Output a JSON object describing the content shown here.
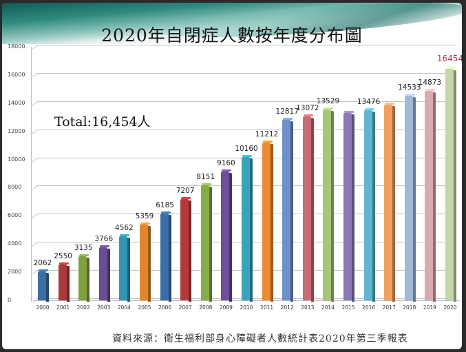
{
  "title": "2020年自閉症人數按年度分布圖",
  "total_annotation": "Total:16,454人",
  "source_note": "資料來源：衛生福利部身心障礙者人數統計表2020年第三季報表",
  "yticks": [
    "18000",
    "16000",
    "14000",
    "12000",
    "10000",
    "8000",
    "6000",
    "4000",
    "2000",
    "0"
  ],
  "highlight_color": "#c0304a",
  "chart_data": {
    "type": "bar",
    "title": "2020年自閉症人數按年度分布圖",
    "xlabel": "",
    "ylabel": "",
    "ylim": [
      0,
      18000
    ],
    "grid": true,
    "legend": "none",
    "categories": [
      "2000",
      "2001",
      "2002",
      "2003",
      "2004",
      "2005",
      "2006",
      "2007",
      "2008",
      "2009",
      "2010",
      "2011",
      "2012",
      "2013",
      "2014",
      "2015",
      "2016",
      "2017",
      "2018",
      "2019",
      "2020"
    ],
    "values": [
      2062,
      2550,
      3135,
      3766,
      4562,
      5359,
      6185,
      7207,
      8151,
      9160,
      10160,
      11212,
      12817,
      13072,
      13529,
      13300,
      13476,
      13900,
      14533,
      14873,
      16454
    ],
    "labels": [
      "2062",
      "2550",
      "3135",
      "3766",
      "4562",
      "5359",
      "6185",
      "7207",
      "8151",
      "9160",
      "10160",
      "11212",
      "12817",
      "13072",
      "13529",
      "",
      "13476",
      "",
      "14533",
      "14873",
      "16454"
    ],
    "bar_colors": [
      "#3a6ea5",
      "#a83a3a",
      "#7fa040",
      "#6a4c93",
      "#3098b0",
      "#e0872e",
      "#3a6ea5",
      "#b23a3a",
      "#86ae48",
      "#6f4f9a",
      "#39a3bd",
      "#ee8a30",
      "#6f90c8",
      "#c96b74",
      "#a6c77a",
      "#8b79b8",
      "#5fb6cf",
      "#f3a163",
      "#a3b9d9",
      "#dbaab0",
      "#c3d7a8"
    ],
    "annotations": [
      "Total:16,454人"
    ]
  }
}
